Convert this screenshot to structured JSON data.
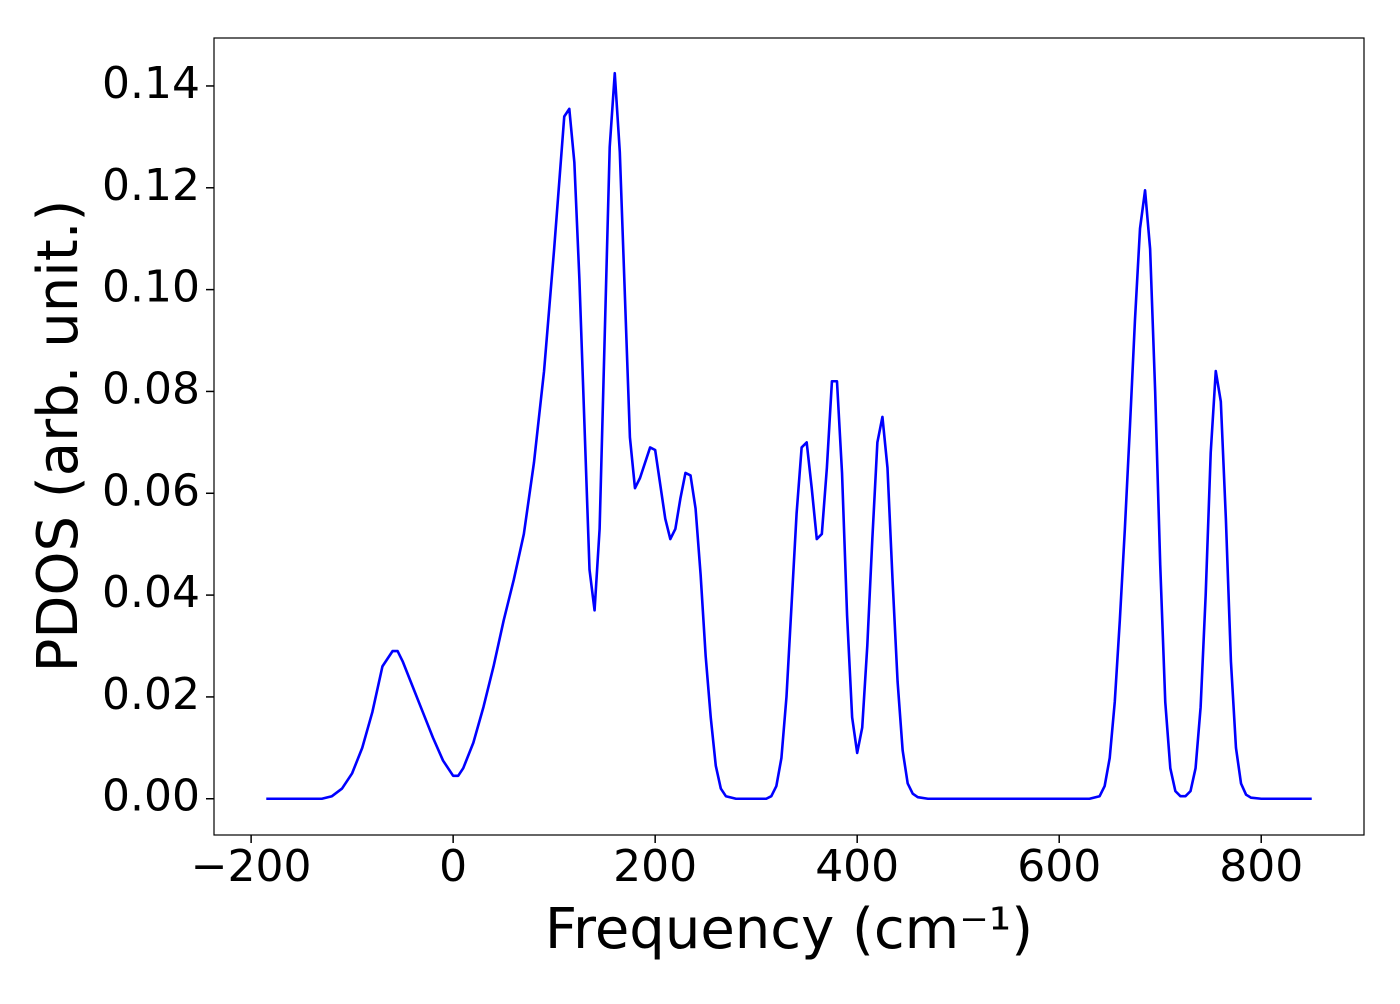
{
  "chart_data": {
    "type": "line",
    "xlabel": "Frequency (cm⁻¹)",
    "ylabel": "PDOS (arb. unit.)",
    "xlim": [
      -236.75,
      901.75
    ],
    "ylim": [
      -0.00712,
      0.14942
    ],
    "xticks": [
      {
        "value": -200,
        "label": "−200"
      },
      0,
      200,
      400,
      600,
      800
    ],
    "yticks": [
      {
        "value": 0,
        "label": "0.00"
      },
      {
        "value": 0.02,
        "label": "0.02"
      },
      {
        "value": 0.04,
        "label": "0.04"
      },
      {
        "value": 0.06,
        "label": "0.06"
      },
      {
        "value": 0.08,
        "label": "0.08"
      },
      {
        "value": 0.1,
        "label": "0.10"
      },
      {
        "value": 0.12,
        "label": "0.12"
      },
      {
        "value": 0.14,
        "label": "0.14"
      }
    ],
    "grid": false,
    "series": [
      {
        "color": "#0000ff",
        "x": [
          -185,
          -130,
          -120,
          -110,
          -100,
          -90,
          -80,
          -70,
          -60,
          -55,
          -50,
          -40,
          -30,
          -20,
          -10,
          0,
          5,
          10,
          20,
          30,
          40,
          50,
          60,
          70,
          80,
          90,
          100,
          110,
          115,
          120,
          125,
          135,
          140,
          145,
          155,
          160,
          165,
          175,
          180,
          185,
          195,
          200,
          210,
          215,
          220,
          225,
          230,
          235,
          240,
          245,
          250,
          255,
          260,
          265,
          270,
          280,
          310,
          315,
          320,
          325,
          330,
          335,
          340,
          345,
          350,
          355,
          360,
          365,
          370,
          375,
          380,
          385,
          390,
          395,
          400,
          405,
          410,
          415,
          420,
          425,
          430,
          435,
          440,
          445,
          450,
          455,
          460,
          470,
          630,
          640,
          645,
          650,
          655,
          660,
          665,
          670,
          675,
          680,
          685,
          690,
          695,
          700,
          705,
          710,
          715,
          720,
          725,
          730,
          735,
          740,
          745,
          750,
          755,
          760,
          765,
          770,
          775,
          780,
          785,
          790,
          800,
          850
        ],
        "values": [
          0,
          0,
          0.0005,
          0.002,
          0.005,
          0.01,
          0.017,
          0.026,
          0.029,
          0.029,
          0.027,
          0.022,
          0.017,
          0.012,
          0.0075,
          0.0045,
          0.0045,
          0.006,
          0.011,
          0.018,
          0.026,
          0.035,
          0.043,
          0.052,
          0.066,
          0.084,
          0.108,
          0.134,
          0.1355,
          0.125,
          0.102,
          0.045,
          0.037,
          0.053,
          0.128,
          0.1425,
          0.127,
          0.071,
          0.061,
          0.063,
          0.069,
          0.0685,
          0.055,
          0.051,
          0.053,
          0.059,
          0.064,
          0.0635,
          0.057,
          0.044,
          0.028,
          0.016,
          0.0065,
          0.002,
          0.0005,
          0,
          0,
          0.0005,
          0.0025,
          0.008,
          0.02,
          0.038,
          0.056,
          0.069,
          0.07,
          0.061,
          0.051,
          0.052,
          0.065,
          0.082,
          0.082,
          0.064,
          0.036,
          0.016,
          0.009,
          0.014,
          0.03,
          0.051,
          0.07,
          0.075,
          0.065,
          0.043,
          0.023,
          0.0095,
          0.003,
          0.001,
          0.0003,
          0,
          0,
          0.0005,
          0.0025,
          0.008,
          0.019,
          0.035,
          0.053,
          0.073,
          0.094,
          0.112,
          0.1195,
          0.108,
          0.08,
          0.046,
          0.019,
          0.006,
          0.0015,
          0.0005,
          0.0005,
          0.0015,
          0.006,
          0.018,
          0.04,
          0.068,
          0.084,
          0.078,
          0.055,
          0.027,
          0.01,
          0.003,
          0.0008,
          0.0002,
          0,
          0
        ]
      }
    ]
  }
}
